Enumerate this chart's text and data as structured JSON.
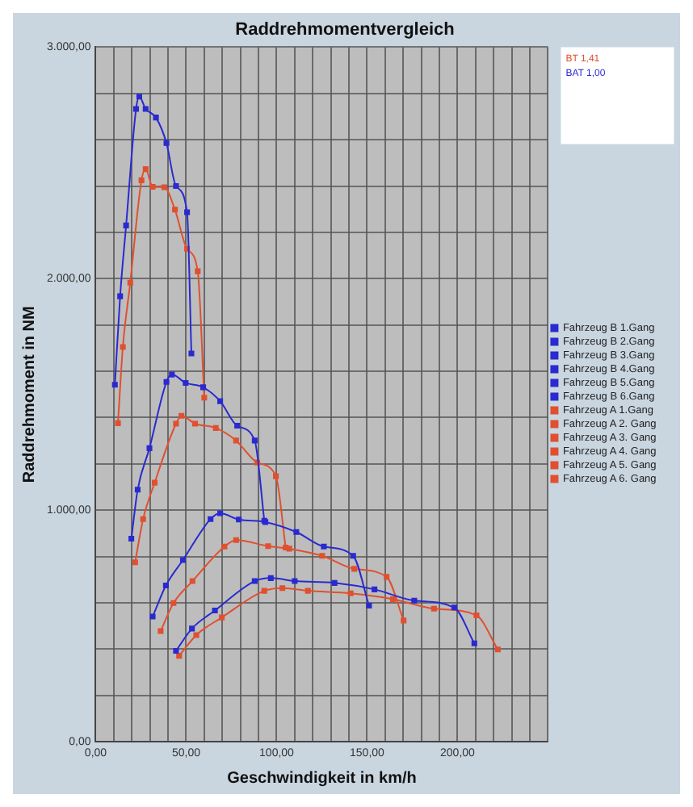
{
  "chart_data": {
    "type": "line",
    "title": "Raddrehmomentvergleich",
    "xlabel": "Geschwindigkeit in km/h",
    "ylabel": "Raddrehmoment in NM",
    "xlim": [
      0,
      250
    ],
    "ylim": [
      0,
      3000
    ],
    "xticks": [
      {
        "value": 0,
        "label": "0,00"
      },
      {
        "value": 10,
        "label": null
      },
      {
        "value": 20,
        "label": null
      },
      {
        "value": 30,
        "label": null
      },
      {
        "value": 40,
        "label": null
      },
      {
        "value": 50,
        "label": "50,00"
      },
      {
        "value": 60,
        "label": null
      },
      {
        "value": 70,
        "label": null
      },
      {
        "value": 80,
        "label": null
      },
      {
        "value": 90,
        "label": null
      },
      {
        "value": 100,
        "label": "100,00"
      },
      {
        "value": 110,
        "label": null
      },
      {
        "value": 120,
        "label": null
      },
      {
        "value": 130,
        "label": null
      },
      {
        "value": 140,
        "label": null
      },
      {
        "value": 150,
        "label": "150,00"
      },
      {
        "value": 160,
        "label": null
      },
      {
        "value": 170,
        "label": null
      },
      {
        "value": 180,
        "label": null
      },
      {
        "value": 190,
        "label": null
      },
      {
        "value": 200,
        "label": "200,00"
      },
      {
        "value": 210,
        "label": null
      },
      {
        "value": 220,
        "label": null
      },
      {
        "value": 230,
        "label": null
      },
      {
        "value": 240,
        "label": null
      },
      {
        "value": 250,
        "label": null
      }
    ],
    "yticks": [
      {
        "value": 0,
        "label": "0,00"
      },
      {
        "value": 200,
        "label": null
      },
      {
        "value": 400,
        "label": null
      },
      {
        "value": 600,
        "label": null
      },
      {
        "value": 800,
        "label": null
      },
      {
        "value": 1000,
        "label": "1.000,00"
      },
      {
        "value": 1200,
        "label": null
      },
      {
        "value": 1400,
        "label": null
      },
      {
        "value": 1600,
        "label": null
      },
      {
        "value": 1800,
        "label": null
      },
      {
        "value": 2000,
        "label": "2.000,00"
      },
      {
        "value": 2200,
        "label": null
      },
      {
        "value": 2400,
        "label": null
      },
      {
        "value": 2600,
        "label": null
      },
      {
        "value": 2800,
        "label": null
      },
      {
        "value": 3000,
        "label": "3.000,00"
      }
    ],
    "grid": true,
    "legend": "right",
    "marker": "square",
    "line_style": "solid",
    "annotations": [
      "BT 1,41",
      "BAT 1,00"
    ],
    "series": [
      {
        "name": "Fahrzeug B 1.Gang",
        "color": "#2a2ad0",
        "x": [
          10.6,
          13.5,
          16.8,
          22.3,
          24.1,
          27.6,
          33.3,
          39.1,
          44.4,
          50.5,
          52.9
        ],
        "values": [
          1542,
          1924,
          2230,
          2733,
          2786,
          2733,
          2696,
          2586,
          2400,
          2287,
          1677
        ]
      },
      {
        "name": "Fahrzeug B 2.Gang",
        "color": "#2a2ad0",
        "x": [
          19.7,
          23.2,
          29.7,
          39.1,
          42.1,
          49.7,
          59.4,
          68.8,
          78.2,
          87.9,
          93.2
        ],
        "values": [
          877,
          1089,
          1268,
          1554,
          1586,
          1550,
          1531,
          1471,
          1365,
          1301,
          955
        ]
      },
      {
        "name": "Fahrzeug B 3.Gang",
        "color": "#2a2ad0",
        "x": [
          31.5,
          38.8,
          48.2,
          63.5,
          68.8,
          79.1,
          93.8,
          110.9,
          126.1,
          142.3,
          151.1
        ],
        "values": [
          541,
          675,
          785,
          962,
          987,
          960,
          949,
          906,
          843,
          803,
          588
        ]
      },
      {
        "name": "Fahrzeug B 4.Gang",
        "color": "#2a2ad0",
        "x": [
          44.4,
          53.2,
          65.9,
          87.9,
          96.8,
          110.0,
          132.0,
          154.1,
          176.1,
          198.2,
          209.3
        ],
        "values": [
          393,
          489,
          567,
          694,
          707,
          694,
          686,
          658,
          610,
          580,
          425
        ]
      },
      {
        "name": "Fahrzeug B 5.Gang",
        "color": "#2a2ad0"
      },
      {
        "name": "Fahrzeug B 6.Gang",
        "color": "#2a2ad0"
      },
      {
        "name": "Fahrzeug A 1.Gang",
        "color": "#e05030",
        "x": [
          12.3,
          15.0,
          19.1,
          25.3,
          27.6,
          31.5,
          37.9,
          43.8,
          50.5,
          56.4,
          60.0
        ],
        "values": [
          1376,
          1705,
          1983,
          2425,
          2473,
          2397,
          2395,
          2298,
          2129,
          2032,
          1486
        ]
      },
      {
        "name": "Fahrzeug A 2. Gang",
        "color": "#e05030",
        "x": [
          21.8,
          26.2,
          32.6,
          44.4,
          47.4,
          54.9,
          66.4,
          77.6,
          89.3,
          99.6,
          105.0
        ],
        "values": [
          775,
          962,
          1119,
          1374,
          1408,
          1374,
          1355,
          1301,
          1206,
          1147,
          839
        ]
      },
      {
        "name": "Fahrzeug A 3. Gang",
        "color": "#e05030",
        "x": [
          35.9,
          43.0,
          53.5,
          71.2,
          77.6,
          95.3,
          107.0,
          125.2,
          142.9,
          160.8,
          170.2
        ],
        "values": [
          478,
          599,
          694,
          843,
          871,
          845,
          834,
          803,
          747,
          712,
          524
        ]
      },
      {
        "name": "Fahrzeug A 4. Gang",
        "color": "#e05030",
        "x": [
          46.1,
          55.6,
          69.7,
          93.2,
          103.2,
          117.3,
          140.9,
          164.3,
          187.0,
          210.5,
          222.3
        ],
        "values": [
          371,
          461,
          537,
          652,
          664,
          652,
          641,
          616,
          575,
          546,
          399
        ]
      },
      {
        "name": "Fahrzeug A 5. Gang",
        "color": "#e05030"
      },
      {
        "name": "Fahrzeug A 6. Gang",
        "color": "#e05030"
      }
    ]
  }
}
